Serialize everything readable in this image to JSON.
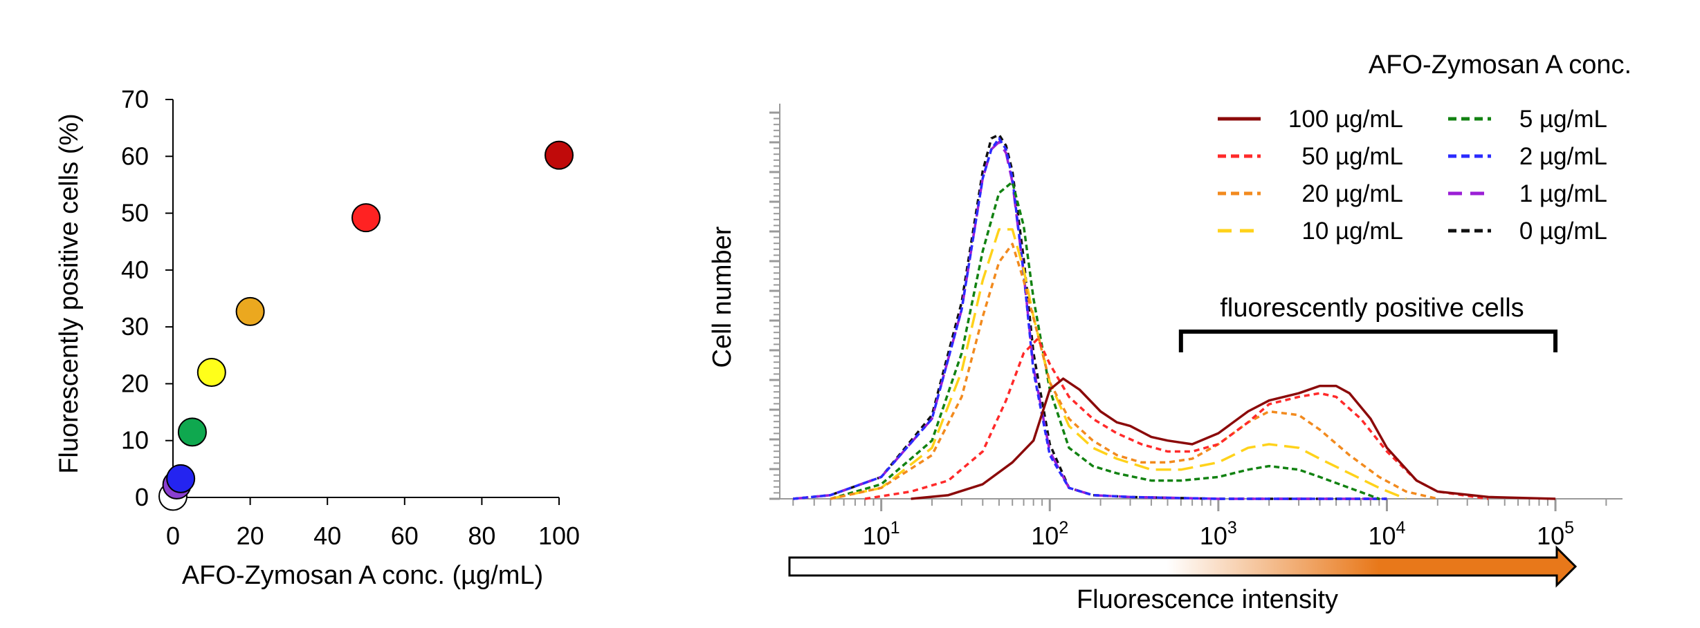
{
  "colors": {
    "c100": "#8b0a0a",
    "c50": "#ff2a2a",
    "c20": "#f28a1e",
    "c10": "#ffd21a",
    "c5": "#128212",
    "c2": "#2b2bff",
    "c1": "#9b1fd6",
    "c0": "#111111",
    "arrow": "#e8781a"
  },
  "chart_data": [
    {
      "type": "scatter",
      "xlabel": "AFO-Zymosan A conc. (µg/mL)",
      "ylabel": "Fluorescently positive cells (%)",
      "xlim": [
        0,
        100
      ],
      "ylim": [
        0,
        70
      ],
      "xticks": [
        "0",
        "20",
        "40",
        "60",
        "80",
        "100"
      ],
      "yticks": [
        "0",
        "10",
        "20",
        "30",
        "40",
        "50",
        "60",
        "70"
      ],
      "grid": false,
      "points": [
        {
          "x": 0,
          "y": 0.2,
          "color": "#ffffff"
        },
        {
          "x": 1,
          "y": 2.2,
          "color": "#8a3fd0"
        },
        {
          "x": 2,
          "y": 3.3,
          "color": "#2424f0"
        },
        {
          "x": 5,
          "y": 11.5,
          "color": "#0fa84f"
        },
        {
          "x": 10,
          "y": 22,
          "color": "#ffff1a"
        },
        {
          "x": 20,
          "y": 32.7,
          "color": "#eba81f"
        },
        {
          "x": 50,
          "y": 49.2,
          "color": "#ff2222"
        },
        {
          "x": 100,
          "y": 60.2,
          "color": "#c00a0a"
        }
      ]
    },
    {
      "type": "line",
      "xlabel": "Fluorescence intensity",
      "ylabel": "Cell number",
      "x_scale": "log",
      "xlim": [
        2.5,
        250000
      ],
      "xticks": [
        {
          "base": "10",
          "exp": "1",
          "value": 10
        },
        {
          "base": "10",
          "exp": "2",
          "value": 100
        },
        {
          "base": "10",
          "exp": "3",
          "value": 1000
        },
        {
          "base": "10",
          "exp": "4",
          "value": 10000
        },
        {
          "base": "10",
          "exp": "5",
          "value": 100000
        }
      ],
      "y_values": "relative counts (0-100, peak of control = ~100)",
      "legend": {
        "title": "AFO-Zymosan A conc.",
        "position": "top-right"
      },
      "annotation": {
        "text": "fluorescently positive cells",
        "range": [
          600,
          100000
        ]
      },
      "series": [
        {
          "name": "100 µg/mL",
          "color_key": "c100",
          "dash": "solid",
          "x": [
            15,
            25,
            40,
            60,
            80,
            100,
            120,
            150,
            200,
            250,
            300,
            400,
            500,
            700,
            1000,
            1500,
            2000,
            3000,
            4000,
            5000,
            6000,
            8000,
            10000,
            15000,
            20000,
            40000,
            100000
          ],
          "y": [
            0,
            1,
            4,
            10,
            16,
            30,
            33,
            30,
            24,
            21,
            20,
            17,
            16,
            15,
            18,
            24,
            27,
            29,
            31,
            31,
            29,
            22,
            14,
            5,
            2,
            0.5,
            0
          ]
        },
        {
          "name": "50 µg/mL",
          "color_key": "c50",
          "dash": "8,6",
          "x": [
            8,
            15,
            25,
            40,
            55,
            70,
            85,
            100,
            130,
            180,
            250,
            350,
            500,
            700,
            1000,
            1500,
            2000,
            3000,
            4000,
            5000,
            7000,
            10000,
            15000,
            20000,
            40000
          ],
          "y": [
            0,
            2,
            5,
            13,
            27,
            40,
            44,
            37,
            28,
            22,
            18,
            15,
            13,
            13,
            15,
            21,
            26,
            28,
            29,
            28,
            22,
            13,
            5,
            2,
            0
          ]
        },
        {
          "name": "20 µg/mL",
          "color_key": "c20",
          "dash": "8,6",
          "x": [
            5,
            10,
            20,
            30,
            40,
            50,
            60,
            70,
            85,
            100,
            130,
            180,
            250,
            350,
            500,
            700,
            1000,
            1500,
            2000,
            3000,
            4000,
            6000,
            9000,
            13000,
            20000
          ],
          "y": [
            0,
            3,
            12,
            28,
            50,
            65,
            70,
            60,
            45,
            32,
            22,
            16,
            12,
            10,
            10,
            11,
            15,
            21,
            24,
            23,
            19,
            12,
            6,
            2,
            0
          ]
        },
        {
          "name": "10 µg/mL",
          "color_key": "c10",
          "dash": "22,10",
          "x": [
            5,
            10,
            20,
            30,
            40,
            50,
            60,
            70,
            80,
            100,
            130,
            180,
            250,
            400,
            600,
            1000,
            1500,
            2000,
            3000,
            4000,
            6000,
            9000,
            13000
          ],
          "y": [
            0,
            3,
            14,
            35,
            60,
            74,
            74,
            63,
            50,
            32,
            20,
            14,
            11,
            8,
            8,
            10,
            14,
            15,
            14,
            11,
            7,
            3,
            0
          ]
        },
        {
          "name": "5 µg/mL",
          "color_key": "c5",
          "dash": "8,5",
          "x": [
            5,
            10,
            20,
            30,
            40,
            50,
            60,
            70,
            80,
            100,
            130,
            180,
            250,
            400,
            600,
            1000,
            1500,
            2000,
            3000,
            4000,
            6000,
            9000
          ],
          "y": [
            0,
            4,
            16,
            40,
            68,
            84,
            87,
            75,
            55,
            30,
            14,
            9,
            7,
            5,
            5,
            6,
            8,
            9,
            8,
            6,
            3,
            0
          ]
        },
        {
          "name": "2 µg/mL",
          "color_key": "c2",
          "dash": "8,5",
          "x": [
            3,
            5,
            10,
            20,
            30,
            40,
            45,
            50,
            55,
            60,
            70,
            80,
            100,
            130,
            180,
            300,
            1000,
            10000
          ],
          "y": [
            0,
            1,
            6,
            22,
            52,
            88,
            96,
            99,
            96,
            88,
            62,
            35,
            12,
            3,
            1,
            0.5,
            0,
            0
          ]
        },
        {
          "name": "1 µg/mL",
          "color_key": "c1",
          "dash": "22,10",
          "x": [
            3,
            5,
            10,
            20,
            30,
            40,
            45,
            50,
            55,
            60,
            70,
            80,
            100,
            130,
            180,
            300,
            1000,
            10000
          ],
          "y": [
            0,
            1,
            6,
            22,
            52,
            88,
            96,
            98,
            95,
            87,
            62,
            36,
            13,
            3,
            1,
            0.5,
            0,
            0
          ]
        },
        {
          "name": "0 µg/mL",
          "color_key": "c0",
          "dash": "8,6",
          "x": [
            3,
            5,
            10,
            20,
            30,
            40,
            45,
            50,
            55,
            60,
            70,
            80,
            100,
            130,
            180,
            300,
            1000,
            10000
          ],
          "y": [
            0,
            1,
            6,
            23,
            54,
            90,
            99,
            100,
            97,
            90,
            66,
            40,
            15,
            3,
            1,
            0.5,
            0,
            0
          ]
        }
      ]
    }
  ]
}
